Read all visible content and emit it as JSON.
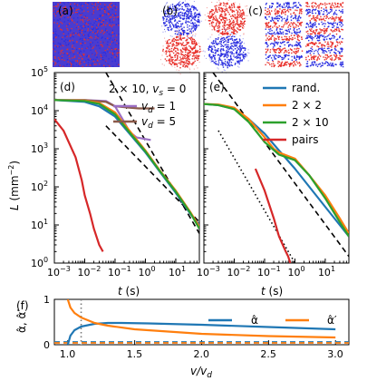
{
  "chart_data": [
    {
      "panel": "(a)",
      "type": "scatter",
      "description_label": "(a)",
      "content": "random mixture of red and blue particles",
      "colors": {
        "red": "#e8302a",
        "blue": "#2a2ee0"
      }
    },
    {
      "panel": "(b)",
      "type": "scatter",
      "description_label": "(b)",
      "content": "2x2 checkerboard of blue and red domains",
      "pattern": [
        [
          "blue",
          "red"
        ],
        [
          "red",
          "blue"
        ]
      ]
    },
    {
      "panel": "(c)",
      "type": "scatter",
      "description_label": "(c)",
      "content": "2x10 stripes of alternating red and blue",
      "pattern_rows": 10
    },
    {
      "panel": "(d)",
      "type": "line",
      "xscale": "log",
      "yscale": "log",
      "xlim": [
        0.001,
        60
      ],
      "ylim": [
        1,
        100000
      ],
      "xlabel": "t (s)",
      "ylabel": "L (mm⁻²)",
      "annotation": "2 × 10, v_s = 0",
      "legend": [
        "v_d = 1",
        "v_d = 5"
      ],
      "legend_position": "right",
      "series": [
        {
          "name": "v_d = 1",
          "color": "#9b6fc4",
          "x": [
            0.001,
            0.01,
            0.05,
            0.1,
            0.2,
            0.3,
            0.5,
            1.0,
            1.5
          ],
          "y": [
            19000,
            19000,
            18000,
            13000,
            5000,
            2800,
            2000,
            1800,
            1700
          ]
        },
        {
          "name": "v_d = 5",
          "color": "#8b5a4a",
          "x": [
            0.001,
            0.01,
            0.05,
            0.1,
            0.3,
            0.6,
            1.0,
            2.0
          ],
          "y": [
            19000,
            19000,
            17000,
            13000,
            12000,
            11500,
            11500,
            11500
          ]
        },
        {
          "name": "",
          "color": "#1f77b4",
          "x": [
            0.001,
            0.01,
            0.03,
            0.1,
            0.3,
            1,
            3,
            10,
            30,
            60
          ],
          "y": [
            19000,
            17000,
            13000,
            7000,
            2500,
            800,
            250,
            70,
            20,
            10
          ]
        },
        {
          "name": "",
          "color": "#ff7f0e",
          "x": [
            0.001,
            0.01,
            0.03,
            0.1,
            0.3,
            1,
            3,
            10,
            30,
            60
          ],
          "y": [
            19000,
            18500,
            16000,
            9000,
            3000,
            900,
            270,
            80,
            22,
            9
          ]
        },
        {
          "name": "",
          "color": "#2ca02c",
          "x": [
            0.001,
            0.01,
            0.03,
            0.1,
            0.3,
            1,
            3,
            10,
            30,
            60
          ],
          "y": [
            19000,
            18000,
            15000,
            8000,
            2700,
            850,
            260,
            75,
            21,
            8
          ]
        },
        {
          "name": "",
          "color": "#d62728",
          "x": [
            0.001,
            0.002,
            0.005,
            0.008,
            0.01,
            0.015,
            0.02,
            0.03,
            0.04
          ],
          "y": [
            6000,
            3000,
            600,
            150,
            60,
            20,
            8,
            3,
            2
          ]
        }
      ],
      "reference_lines": [
        {
          "style": "dashed",
          "x": [
            0.05,
            60
          ],
          "y": [
            100000,
            6
          ]
        },
        {
          "style": "dashed",
          "x": [
            0.05,
            60
          ],
          "y": [
            4000,
            12
          ]
        }
      ]
    },
    {
      "panel": "(e)",
      "type": "line",
      "xscale": "log",
      "yscale": "log",
      "xlim": [
        0.001,
        60
      ],
      "ylim": [
        1,
        100000
      ],
      "xlabel": "t (s)",
      "legend": [
        "rand.",
        "2 × 2",
        "2 × 10",
        "pairs"
      ],
      "legend_position": "top-right",
      "series": [
        {
          "name": "rand.",
          "color": "#1f77b4",
          "x": [
            0.001,
            0.003,
            0.01,
            0.03,
            0.1,
            0.3,
            1,
            3,
            10,
            30,
            60
          ],
          "y": [
            15000,
            14000,
            11000,
            6000,
            2500,
            900,
            300,
            100,
            30,
            10,
            5
          ]
        },
        {
          "name": "2 × 2",
          "color": "#ff7f0e",
          "x": [
            0.001,
            0.003,
            0.01,
            0.03,
            0.1,
            0.2,
            0.3,
            1,
            3,
            10,
            30,
            60
          ],
          "y": [
            15000,
            14500,
            12000,
            6000,
            2000,
            1000,
            800,
            550,
            200,
            60,
            15,
            6
          ]
        },
        {
          "name": "2 × 10",
          "color": "#2ca02c",
          "x": [
            0.001,
            0.003,
            0.01,
            0.03,
            0.1,
            0.3,
            1,
            3,
            10,
            30,
            60
          ],
          "y": [
            15000,
            14000,
            11000,
            5000,
            1500,
            700,
            500,
            200,
            50,
            12,
            5
          ]
        },
        {
          "name": "pairs",
          "color": "#d62728",
          "x": [
            0.05,
            0.1,
            0.2,
            0.3,
            0.4,
            0.5,
            0.6,
            0.7
          ],
          "y": [
            300,
            80,
            15,
            5,
            3,
            2,
            1.5,
            1
          ]
        }
      ],
      "reference_lines": [
        {
          "style": "dashed",
          "x": [
            0.002,
            60
          ],
          "y": [
            100000,
            1.5
          ]
        },
        {
          "style": "dotted",
          "x": [
            0.003,
            1.0
          ],
          "y": [
            3000,
            1
          ]
        }
      ]
    },
    {
      "panel": "(f)",
      "type": "line",
      "xlim": [
        0.9,
        3.1
      ],
      "ylim": [
        0,
        1
      ],
      "xlabel": "v/v_d",
      "ylabel": "α̂, α̂′",
      "xticks": [
        1.0,
        1.5,
        2.0,
        2.5,
        3.0
      ],
      "yticks": [
        0,
        1
      ],
      "legend": [
        "α̂",
        "α̂′"
      ],
      "legend_position": "top-right",
      "series": [
        {
          "name": "α̂",
          "color": "#1f77b4",
          "x": [
            1.0,
            1.02,
            1.05,
            1.1,
            1.2,
            1.3,
            1.4,
            1.6,
            2.0,
            2.5,
            3.0
          ],
          "y": [
            0.0,
            0.2,
            0.32,
            0.4,
            0.46,
            0.48,
            0.48,
            0.47,
            0.44,
            0.39,
            0.34
          ]
        },
        {
          "name": "α̂′",
          "color": "#ff7f0e",
          "x": [
            1.0,
            1.02,
            1.05,
            1.1,
            1.2,
            1.3,
            1.5,
            2.0,
            2.5,
            3.0
          ],
          "y": [
            1.0,
            0.82,
            0.7,
            0.6,
            0.48,
            0.42,
            0.34,
            0.24,
            0.19,
            0.16
          ]
        }
      ],
      "reference_lines": [
        {
          "style": "dashed",
          "orientation": "horizontal",
          "y": 0.06,
          "color": "#1f77b4"
        },
        {
          "style": "dashed",
          "orientation": "horizontal",
          "y": 0.04,
          "color": "#ff7f0e"
        },
        {
          "style": "dotted",
          "orientation": "vertical",
          "x": 1.1,
          "color": "#777777"
        }
      ]
    }
  ],
  "labels": {
    "a": "(a)",
    "b": "(b)",
    "c": "(c)",
    "d": "(d)",
    "e": "(e)",
    "f": "(f)",
    "d_note_base": "2 × 10, ",
    "vs": "v",
    "vs_sub": "s",
    "vs_eq": " = 0",
    "vd1_eq": " = 1",
    "vd5_eq": " = 5",
    "t_label": "t",
    "t_unit": " (s)",
    "L_label": "L",
    "L_unit": " (mm",
    "L_exp": "−2",
    "L_close": ")",
    "leg_rand": "rand.",
    "leg_22": "2 × 2",
    "leg_210": "2 × 10",
    "leg_pairs": "pairs",
    "f_xlabel_v": "v/v",
    "f_xlabel_sub": "d",
    "alpha_hat": "α̂",
    "alpha_hat_prime": "α̂′",
    "f_ylabel": "α̂, α̂′"
  },
  "colors": {
    "blue": "#1f77b4",
    "orange": "#ff7f0e",
    "green": "#2ca02c",
    "red": "#d62728",
    "purple": "#9b6fc4",
    "brown": "#8b5a4a",
    "particle_red": "#e8302a",
    "particle_blue": "#2a2ee0"
  }
}
